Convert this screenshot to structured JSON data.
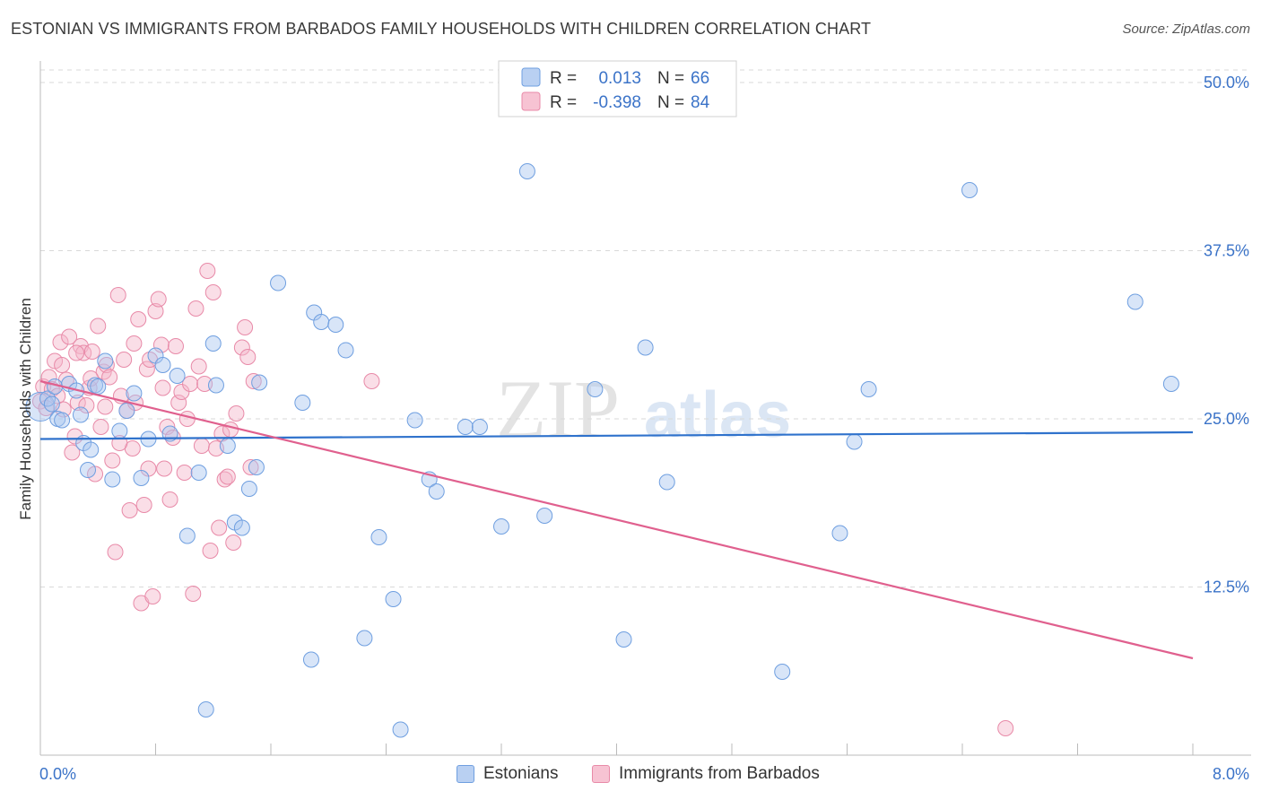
{
  "title": "ESTONIAN VS IMMIGRANTS FROM BARBADOS FAMILY HOUSEHOLDS WITH CHILDREN CORRELATION CHART",
  "source": "Source: ZipAtlas.com",
  "watermark": {
    "zip": "ZIP",
    "atlas": "atlas"
  },
  "colors": {
    "blue": "#a9c6ef",
    "blue_stroke": "#6f9fe0",
    "blue_line": "#2f72cc",
    "pink": "#f5b6c9",
    "pink_stroke": "#e88aa8",
    "pink_line": "#e0608e",
    "axis_text": "#3b73c8",
    "grid": "#d9d9d9"
  },
  "legend_top": {
    "rows": [
      {
        "r_label": "R =",
        "r_value": "0.013",
        "n_label": "N =",
        "n_value": "66"
      },
      {
        "r_label": "R =",
        "r_value": "-0.398",
        "n_label": "N =",
        "n_value": "84"
      }
    ]
  },
  "legend_bottom": {
    "series1": "Estonians",
    "series2": "Immigrants from Barbados"
  },
  "chart_data": {
    "type": "scatter",
    "title": "ESTONIAN VS IMMIGRANTS FROM BARBADOS FAMILY HOUSEHOLDS WITH CHILDREN CORRELATION CHART",
    "xlabel": "",
    "ylabel": "Family Households with Children",
    "xlim": [
      0,
      8
    ],
    "ylim": [
      0,
      52
    ],
    "x_tick_labels": [
      "0.0%",
      "8.0%"
    ],
    "y_ticks": [
      12.5,
      25.0,
      37.5,
      50.0
    ],
    "y_tick_labels": [
      "12.5%",
      "25.0%",
      "37.5%",
      "50.0%"
    ],
    "grid": true,
    "series": [
      {
        "name": "Estonians",
        "R": 0.013,
        "N": 66,
        "trend": {
          "x": [
            0,
            8
          ],
          "y": [
            23.5,
            24.0
          ]
        },
        "points": [
          [
            0.0,
            25.9
          ],
          [
            0.05,
            26.5
          ],
          [
            0.1,
            27.4
          ],
          [
            0.12,
            25.0
          ],
          [
            0.15,
            24.9
          ],
          [
            0.2,
            27.6
          ],
          [
            0.25,
            27.1
          ],
          [
            0.28,
            25.3
          ],
          [
            0.3,
            23.2
          ],
          [
            0.33,
            21.2
          ],
          [
            0.35,
            22.7
          ],
          [
            0.38,
            27.5
          ],
          [
            0.4,
            27.4
          ],
          [
            0.45,
            29.3
          ],
          [
            0.5,
            20.5
          ],
          [
            0.55,
            24.1
          ],
          [
            0.6,
            25.6
          ],
          [
            0.65,
            26.9
          ],
          [
            0.7,
            20.6
          ],
          [
            0.75,
            23.5
          ],
          [
            0.8,
            29.7
          ],
          [
            0.85,
            29.0
          ],
          [
            0.9,
            23.9
          ],
          [
            0.95,
            28.2
          ],
          [
            1.02,
            16.3
          ],
          [
            1.1,
            21.0
          ],
          [
            1.15,
            3.4
          ],
          [
            1.2,
            30.6
          ],
          [
            1.22,
            27.5
          ],
          [
            1.3,
            23.0
          ],
          [
            1.35,
            17.3
          ],
          [
            1.4,
            16.9
          ],
          [
            1.45,
            19.8
          ],
          [
            1.5,
            21.4
          ],
          [
            1.52,
            27.7
          ],
          [
            1.65,
            35.1
          ],
          [
            1.82,
            26.2
          ],
          [
            1.88,
            7.1
          ],
          [
            1.9,
            32.9
          ],
          [
            1.95,
            32.2
          ],
          [
            2.05,
            32.0
          ],
          [
            2.12,
            30.1
          ],
          [
            2.25,
            8.7
          ],
          [
            2.35,
            16.2
          ],
          [
            2.45,
            11.6
          ],
          [
            2.5,
            1.9
          ],
          [
            2.6,
            24.9
          ],
          [
            2.7,
            20.5
          ],
          [
            2.75,
            19.6
          ],
          [
            2.95,
            24.4
          ],
          [
            3.05,
            24.4
          ],
          [
            3.2,
            17.0
          ],
          [
            3.38,
            43.4
          ],
          [
            3.5,
            17.8
          ],
          [
            3.85,
            27.2
          ],
          [
            4.05,
            8.6
          ],
          [
            4.2,
            30.3
          ],
          [
            4.35,
            20.3
          ],
          [
            5.15,
            6.2
          ],
          [
            5.55,
            16.5
          ],
          [
            5.65,
            23.3
          ],
          [
            5.75,
            27.2
          ],
          [
            6.45,
            42.0
          ],
          [
            7.6,
            33.7
          ],
          [
            7.85,
            27.6
          ],
          [
            0.08,
            26.1
          ]
        ]
      },
      {
        "name": "Immigrants from Barbados",
        "R": -0.398,
        "N": 84,
        "trend": {
          "x": [
            0,
            8
          ],
          "y": [
            27.8,
            7.2
          ]
        },
        "points": [
          [
            0.0,
            26.3
          ],
          [
            0.02,
            27.4
          ],
          [
            0.04,
            25.8
          ],
          [
            0.06,
            28.1
          ],
          [
            0.08,
            27.2
          ],
          [
            0.1,
            29.3
          ],
          [
            0.12,
            26.7
          ],
          [
            0.14,
            30.7
          ],
          [
            0.16,
            25.7
          ],
          [
            0.18,
            27.9
          ],
          [
            0.2,
            31.1
          ],
          [
            0.22,
            22.5
          ],
          [
            0.24,
            23.7
          ],
          [
            0.26,
            26.2
          ],
          [
            0.28,
            30.4
          ],
          [
            0.3,
            29.9
          ],
          [
            0.32,
            26.0
          ],
          [
            0.34,
            27.3
          ],
          [
            0.36,
            30.0
          ],
          [
            0.38,
            20.9
          ],
          [
            0.4,
            31.9
          ],
          [
            0.42,
            24.4
          ],
          [
            0.44,
            28.5
          ],
          [
            0.46,
            29.0
          ],
          [
            0.48,
            28.1
          ],
          [
            0.5,
            21.9
          ],
          [
            0.52,
            15.1
          ],
          [
            0.54,
            34.2
          ],
          [
            0.56,
            26.7
          ],
          [
            0.58,
            29.4
          ],
          [
            0.6,
            25.6
          ],
          [
            0.62,
            18.2
          ],
          [
            0.64,
            22.8
          ],
          [
            0.66,
            26.2
          ],
          [
            0.68,
            32.4
          ],
          [
            0.7,
            11.3
          ],
          [
            0.72,
            18.6
          ],
          [
            0.74,
            28.7
          ],
          [
            0.76,
            29.4
          ],
          [
            0.78,
            11.8
          ],
          [
            0.8,
            33.0
          ],
          [
            0.82,
            33.9
          ],
          [
            0.84,
            30.5
          ],
          [
            0.86,
            21.3
          ],
          [
            0.88,
            24.4
          ],
          [
            0.9,
            19.0
          ],
          [
            0.92,
            23.6
          ],
          [
            0.94,
            30.4
          ],
          [
            0.96,
            26.2
          ],
          [
            0.98,
            27.0
          ],
          [
            1.0,
            21.0
          ],
          [
            1.02,
            25.0
          ],
          [
            1.04,
            27.6
          ],
          [
            1.06,
            12.0
          ],
          [
            1.08,
            33.2
          ],
          [
            1.1,
            28.9
          ],
          [
            1.12,
            23.0
          ],
          [
            1.14,
            27.6
          ],
          [
            1.16,
            36.0
          ],
          [
            1.18,
            15.2
          ],
          [
            1.2,
            34.4
          ],
          [
            1.22,
            22.8
          ],
          [
            1.24,
            16.9
          ],
          [
            1.26,
            23.9
          ],
          [
            1.28,
            20.5
          ],
          [
            1.3,
            20.7
          ],
          [
            1.32,
            24.2
          ],
          [
            1.34,
            15.8
          ],
          [
            1.36,
            25.4
          ],
          [
            1.4,
            30.3
          ],
          [
            1.42,
            31.8
          ],
          [
            1.44,
            29.6
          ],
          [
            1.46,
            21.4
          ],
          [
            1.48,
            27.8
          ],
          [
            0.15,
            29.0
          ],
          [
            0.35,
            28.0
          ],
          [
            0.25,
            29.9
          ],
          [
            0.45,
            25.9
          ],
          [
            0.55,
            23.2
          ],
          [
            0.65,
            30.6
          ],
          [
            0.75,
            21.3
          ],
          [
            0.85,
            27.3
          ],
          [
            2.3,
            27.8
          ],
          [
            6.7,
            2.0
          ]
        ]
      }
    ]
  }
}
